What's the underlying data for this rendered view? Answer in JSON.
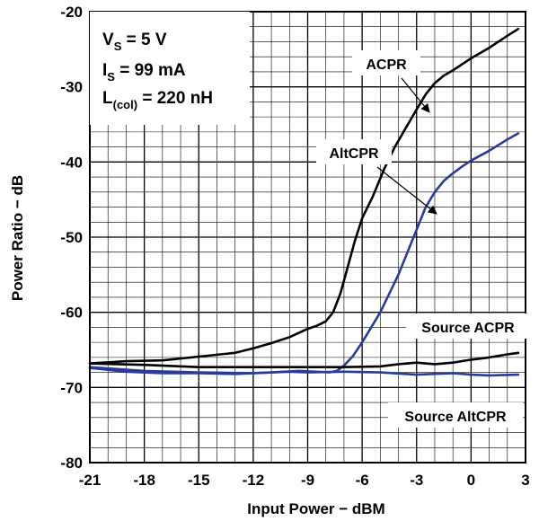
{
  "chart_data": {
    "type": "line",
    "xlabel": "Input Power − dBM",
    "ylabel": "Power Ratio − dB",
    "xlim": [
      -21,
      3
    ],
    "ylim": [
      -80,
      -20
    ],
    "x_ticks": [
      "-21",
      "-18",
      "-15",
      "-12",
      "-9",
      "-6",
      "-3",
      "0",
      "3"
    ],
    "y_ticks": [
      "-20",
      "-30",
      "-40",
      "-50",
      "-60",
      "-70",
      "-80"
    ],
    "grid": true,
    "colors": {
      "black": "#000000",
      "blue": "#2b3a9a"
    },
    "conditions": [
      {
        "name": "V",
        "sub": "S",
        "value": " = 5 V"
      },
      {
        "name": "I",
        "sub": "S",
        "value": "  = 99 mA"
      },
      {
        "name": "L",
        "sub": "(col)",
        "value": " = 220 nH"
      }
    ],
    "series": [
      {
        "name": "ACPR",
        "color": "#000000",
        "points": [
          [
            -21,
            -66.8
          ],
          [
            -19,
            -66.5
          ],
          [
            -17,
            -66.4
          ],
          [
            -15,
            -65.9
          ],
          [
            -13,
            -65.4
          ],
          [
            -12,
            -64.8
          ],
          [
            -11,
            -64.1
          ],
          [
            -10,
            -63.3
          ],
          [
            -9,
            -62.2
          ],
          [
            -8.5,
            -61.8
          ],
          [
            -8,
            -61.2
          ],
          [
            -7.6,
            -60.0
          ],
          [
            -7.2,
            -57.5
          ],
          [
            -6.8,
            -54.0
          ],
          [
            -6.4,
            -50.5
          ],
          [
            -6.0,
            -47.5
          ],
          [
            -5.4,
            -44.5
          ],
          [
            -4.8,
            -41.0
          ],
          [
            -4.2,
            -38.0
          ],
          [
            -3.6,
            -35.5
          ],
          [
            -3.0,
            -33.0
          ],
          [
            -2.5,
            -31.0
          ],
          [
            -2.0,
            -29.5
          ],
          [
            -1.5,
            -28.5
          ],
          [
            -1.0,
            -27.8
          ],
          [
            -0.5,
            -27.0
          ],
          [
            0,
            -26.2
          ],
          [
            1,
            -24.8
          ],
          [
            2,
            -23.2
          ],
          [
            2.6,
            -22.3
          ]
        ]
      },
      {
        "name": "AltCPR",
        "color": "#2b3a9a",
        "points": [
          [
            -21,
            -67.4
          ],
          [
            -19,
            -67.9
          ],
          [
            -17,
            -68.1
          ],
          [
            -15,
            -68.1
          ],
          [
            -13,
            -68.2
          ],
          [
            -11,
            -68.0
          ],
          [
            -9.5,
            -67.8
          ],
          [
            -8.5,
            -67.9
          ],
          [
            -7.8,
            -68.0
          ],
          [
            -7.4,
            -67.8
          ],
          [
            -7.0,
            -67.1
          ],
          [
            -6.5,
            -65.8
          ],
          [
            -6.0,
            -64.0
          ],
          [
            -5.5,
            -62.0
          ],
          [
            -5.0,
            -60.0
          ],
          [
            -4.5,
            -57.5
          ],
          [
            -4.0,
            -55.0
          ],
          [
            -3.5,
            -52.0
          ],
          [
            -3.0,
            -49.0
          ],
          [
            -2.5,
            -46.0
          ],
          [
            -2.0,
            -44.0
          ],
          [
            -1.5,
            -42.5
          ],
          [
            -1.0,
            -41.5
          ],
          [
            -0.5,
            -40.6
          ],
          [
            0,
            -39.8
          ],
          [
            1,
            -38.5
          ],
          [
            2,
            -37.0
          ],
          [
            2.6,
            -36.2
          ]
        ]
      },
      {
        "name": "Source ACPR",
        "color": "#000000",
        "points": [
          [
            -21,
            -66.8
          ],
          [
            -18,
            -67.0
          ],
          [
            -15,
            -67.3
          ],
          [
            -12,
            -67.3
          ],
          [
            -9,
            -67.3
          ],
          [
            -7,
            -67.3
          ],
          [
            -5,
            -67.2
          ],
          [
            -4,
            -66.9
          ],
          [
            -3,
            -66.7
          ],
          [
            -2,
            -66.9
          ],
          [
            -1,
            -66.7
          ],
          [
            0,
            -66.3
          ],
          [
            1,
            -66.0
          ],
          [
            2,
            -65.6
          ],
          [
            2.6,
            -65.4
          ]
        ]
      },
      {
        "name": "Source AltCPR",
        "color": "#2b3a9a",
        "points": [
          [
            -21,
            -67.3
          ],
          [
            -18,
            -67.8
          ],
          [
            -15,
            -68.0
          ],
          [
            -12,
            -68.1
          ],
          [
            -10,
            -67.9
          ],
          [
            -9,
            -68.0
          ],
          [
            -7,
            -67.9
          ],
          [
            -5,
            -68.0
          ],
          [
            -3,
            -68.3
          ],
          [
            -1,
            -68.1
          ],
          [
            0,
            -68.3
          ],
          [
            1,
            -68.4
          ],
          [
            2.6,
            -68.3
          ]
        ]
      }
    ],
    "labels": {
      "acpr": "ACPR",
      "altcpr": "AltCPR",
      "source_acpr": "Source ACPR",
      "source_altcpr": "Source AltCPR"
    }
  }
}
